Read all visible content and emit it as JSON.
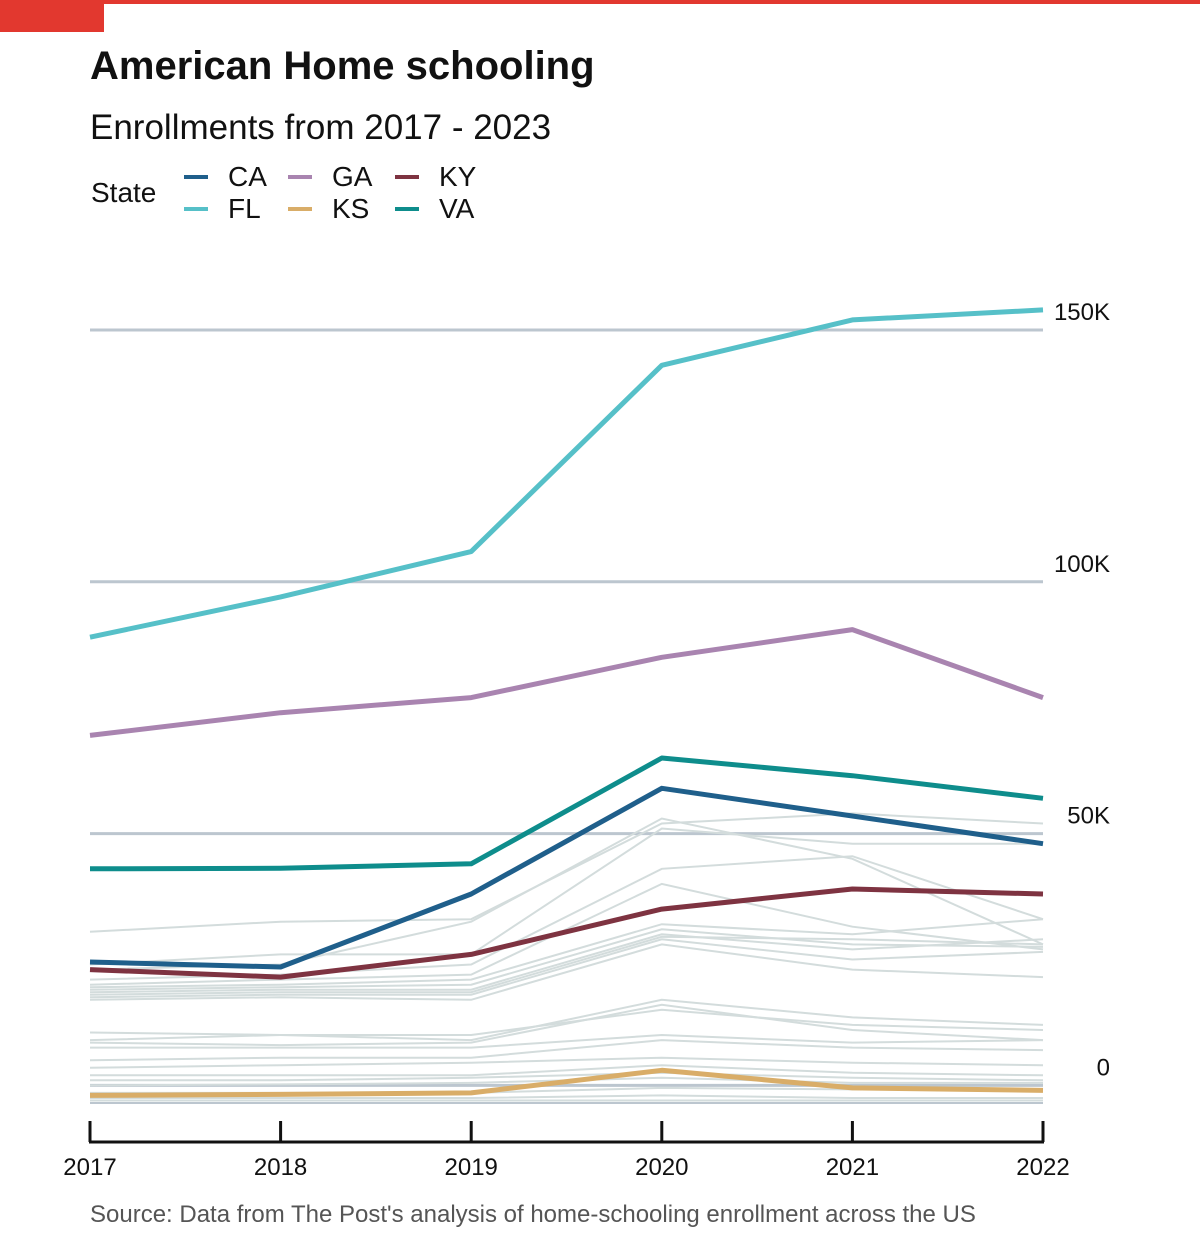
{
  "header": {
    "title": "American Home schooling",
    "subtitle": "Enrollments from 2017 - 2023"
  },
  "legend": {
    "title": "State",
    "items": [
      {
        "label": "CA",
        "color": "#1f5f8b"
      },
      {
        "label": "FL",
        "color": "#56c0c8"
      },
      {
        "label": "GA",
        "color": "#a984b0"
      },
      {
        "label": "KS",
        "color": "#d9ad68"
      },
      {
        "label": "KY",
        "color": "#7e3341"
      },
      {
        "label": "VA",
        "color": "#0e8d8c"
      }
    ]
  },
  "source": "Source: Data from The Post's analysis of home-schooling enrollment across the US",
  "chart_data": {
    "type": "line",
    "title": "American Home schooling",
    "subtitle": "Enrollments from 2017 - 2023",
    "xlabel": "",
    "ylabel": "",
    "x": [
      2017,
      2018,
      2019,
      2020,
      2021,
      2022
    ],
    "x_tick_labels": [
      "2017",
      "2018",
      "2019",
      "2020",
      "2021",
      "2022"
    ],
    "y_ticks": [
      0,
      50000,
      100000,
      150000
    ],
    "y_tick_labels": [
      "0",
      "50K",
      "100K",
      "150K"
    ],
    "y_axis_position": "right",
    "ylim": [
      -3500,
      155000
    ],
    "grid": "horizontal",
    "legend_placement": "top-left",
    "series": [
      {
        "name": "FL",
        "color": "#56c0c8",
        "values": [
          89000,
          97000,
          106000,
          143000,
          152000,
          154000
        ]
      },
      {
        "name": "GA",
        "color": "#a984b0",
        "values": [
          69500,
          74000,
          77000,
          85000,
          90500,
          77000
        ]
      },
      {
        "name": "VA",
        "color": "#0e8d8c",
        "values": [
          43000,
          43100,
          44000,
          65000,
          61500,
          57000
        ]
      },
      {
        "name": "CA",
        "color": "#1f5f8b",
        "values": [
          24500,
          23500,
          38000,
          59000,
          53500,
          48000
        ]
      },
      {
        "name": "KY",
        "color": "#7e3341",
        "values": [
          23000,
          21500,
          26000,
          35000,
          39000,
          38000
        ]
      },
      {
        "name": "KS",
        "color": "#d9ad68",
        "values": [
          -2000,
          -1800,
          -1500,
          3000,
          -500,
          -1000
        ]
      }
    ],
    "background_series": [
      [
        30500,
        32500,
        33000,
        52000,
        54000,
        52000
      ],
      [
        24000,
        26000,
        26000,
        51000,
        48000,
        48000
      ],
      [
        23000,
        24000,
        32500,
        53000,
        45000,
        28000
      ],
      [
        21000,
        22000,
        24000,
        43000,
        45500,
        33000
      ],
      [
        20000,
        21000,
        22000,
        40000,
        31500,
        27000
      ],
      [
        19500,
        20000,
        21000,
        32000,
        30000,
        33000
      ],
      [
        19000,
        19500,
        20000,
        31000,
        28000,
        27500
      ],
      [
        18500,
        19000,
        19000,
        30000,
        27000,
        29000
      ],
      [
        18000,
        18500,
        18500,
        29500,
        29000,
        28000
      ],
      [
        17500,
        18000,
        18000,
        29000,
        25000,
        26500
      ],
      [
        17000,
        17500,
        17000,
        28000,
        23000,
        21500
      ],
      [
        10500,
        10000,
        9000,
        17000,
        13500,
        12000
      ],
      [
        9000,
        10000,
        10000,
        15000,
        12000,
        11000
      ],
      [
        8500,
        8000,
        8500,
        16000,
        11000,
        9000
      ],
      [
        7500,
        7500,
        7500,
        10000,
        8500,
        9000
      ],
      [
        5000,
        5500,
        5500,
        9000,
        7500,
        7000
      ],
      [
        3500,
        4000,
        4500,
        5500,
        4500,
        4000
      ],
      [
        2000,
        2000,
        2000,
        4000,
        2500,
        2000
      ],
      [
        1000,
        1000,
        1500,
        2500,
        1500,
        1000
      ],
      [
        0,
        200,
        500,
        1500,
        500,
        500
      ],
      [
        -1500,
        -1500,
        -1500,
        -500,
        -800,
        -800
      ],
      [
        -2500,
        -2500,
        -2500,
        -2000,
        -2500,
        -2500
      ],
      [
        -3000,
        -3000,
        -3000,
        -3000,
        -3000,
        -3000
      ]
    ]
  }
}
